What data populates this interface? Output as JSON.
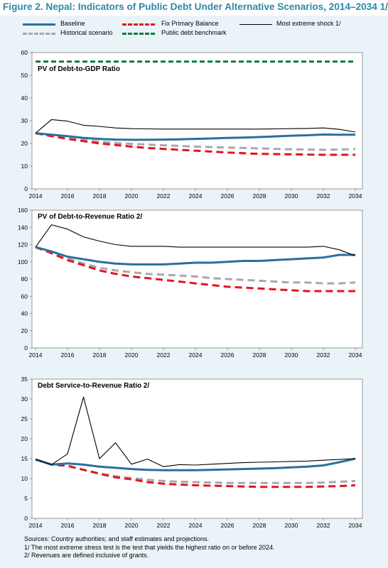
{
  "figure_title": "Figure 2. Nepal: Indicators of Public Debt Under Alternative Scenarios, 2014–2034 1/",
  "legend": {
    "baseline": "Baseline",
    "fix_primary_balance": "Fix Primary Balance",
    "most_extreme_shock": "Most extreme shock  1/",
    "historical": "Historical scenario",
    "benchmark": "Public debt benchmark"
  },
  "colors": {
    "title": "#2e88a8",
    "baseline": "#2a6f9e",
    "fix_primary_balance": "#e3141b",
    "most_extreme_shock": "#000000",
    "historical": "#a8a8a8",
    "benchmark": "#0e7a3c",
    "panel_background": "#eaf4f8"
  },
  "chart_data": [
    {
      "type": "line",
      "title": "PV of Debt-to-GDP Ratio",
      "ylim": [
        0,
        60
      ],
      "yticks": [
        0,
        10,
        20,
        30,
        40,
        50,
        60
      ],
      "xticks": [
        2014,
        2016,
        2018,
        2020,
        2022,
        2024,
        2026,
        2028,
        2030,
        2032,
        2034
      ],
      "x": [
        2014,
        2015,
        2016,
        2017,
        2018,
        2019,
        2020,
        2021,
        2022,
        2023,
        2024,
        2025,
        2026,
        2027,
        2028,
        2029,
        2030,
        2031,
        2032,
        2033,
        2034
      ],
      "series": [
        {
          "key": "benchmark",
          "values": [
            56,
            56,
            56,
            56,
            56,
            56,
            56,
            56,
            56,
            56,
            56,
            56,
            56,
            56,
            56,
            56,
            56,
            56,
            56,
            56,
            56
          ]
        },
        {
          "key": "historical",
          "values": [
            24.5,
            23.5,
            22.5,
            21.5,
            20.8,
            20.2,
            19.8,
            19.5,
            19.2,
            18.9,
            18.6,
            18.4,
            18.2,
            18.0,
            17.8,
            17.6,
            17.4,
            17.3,
            17.2,
            17.3,
            17.5
          ]
        },
        {
          "key": "fix_primary_balance",
          "values": [
            24.5,
            23.2,
            22.0,
            21.0,
            20.0,
            19.3,
            18.6,
            18.0,
            17.6,
            17.2,
            16.8,
            16.4,
            16.0,
            15.7,
            15.4,
            15.3,
            15.2,
            15.1,
            15.0,
            15.0,
            15.0
          ]
        },
        {
          "key": "baseline",
          "values": [
            24.5,
            23.8,
            23.2,
            22.4,
            22.0,
            21.7,
            21.6,
            21.6,
            21.7,
            21.8,
            22.0,
            22.2,
            22.4,
            22.6,
            22.8,
            23.1,
            23.4,
            23.6,
            23.9,
            23.8,
            23.8
          ]
        },
        {
          "key": "most_extreme_shock",
          "values": [
            24.5,
            30.5,
            29.8,
            28.0,
            27.5,
            26.8,
            26.5,
            26.4,
            26.3,
            26.3,
            26.3,
            26.3,
            26.3,
            26.3,
            26.3,
            26.4,
            26.5,
            26.6,
            26.8,
            26.2,
            25.0
          ]
        }
      ]
    },
    {
      "type": "line",
      "title": "PV of Debt-to-Revenue Ratio 2/",
      "ylim": [
        0,
        160
      ],
      "yticks": [
        0,
        20,
        40,
        60,
        80,
        100,
        120,
        140,
        160
      ],
      "xticks": [
        2014,
        2016,
        2018,
        2020,
        2022,
        2024,
        2026,
        2028,
        2030,
        2032,
        2034
      ],
      "x": [
        2014,
        2015,
        2016,
        2017,
        2018,
        2019,
        2020,
        2021,
        2022,
        2023,
        2024,
        2025,
        2026,
        2027,
        2028,
        2029,
        2030,
        2031,
        2032,
        2033,
        2034
      ],
      "series": [
        {
          "key": "historical",
          "values": [
            117,
            111,
            104,
            98,
            93,
            90,
            88,
            86,
            85,
            84,
            83,
            81,
            80,
            79,
            78,
            77,
            76,
            76,
            75,
            75,
            76
          ]
        },
        {
          "key": "fix_primary_balance",
          "values": [
            117,
            110,
            102,
            96,
            90,
            86,
            83,
            81,
            79,
            77,
            75,
            73,
            71,
            70,
            69,
            68,
            67,
            66,
            66,
            66,
            66
          ]
        },
        {
          "key": "baseline",
          "values": [
            117,
            112,
            106,
            103,
            100,
            98,
            97,
            97,
            97,
            98,
            99,
            99,
            100,
            101,
            101,
            102,
            103,
            104,
            105,
            108,
            108
          ]
        },
        {
          "key": "most_extreme_shock",
          "values": [
            117,
            143,
            138,
            129,
            124,
            120,
            118,
            118,
            118,
            117,
            117,
            117,
            117,
            117,
            117,
            117,
            117,
            117,
            118,
            114,
            107
          ]
        }
      ]
    },
    {
      "type": "line",
      "title": "Debt Service-to-Revenue Ratio 2/",
      "ylim": [
        0,
        35
      ],
      "yticks": [
        0,
        5,
        10,
        15,
        20,
        25,
        30,
        35
      ],
      "xticks": [
        2014,
        2016,
        2018,
        2020,
        2022,
        2024,
        2026,
        2028,
        2030,
        2032,
        2034
      ],
      "x": [
        2014,
        2015,
        2016,
        2017,
        2018,
        2019,
        2020,
        2021,
        2022,
        2023,
        2024,
        2025,
        2026,
        2027,
        2028,
        2029,
        2030,
        2031,
        2032,
        2033,
        2034
      ],
      "series": [
        {
          "key": "historical",
          "values": [
            14.8,
            13.5,
            13.2,
            12.2,
            11.3,
            10.6,
            10.1,
            9.7,
            9.4,
            9.2,
            9.1,
            9.0,
            8.9,
            8.9,
            8.9,
            8.9,
            8.9,
            8.9,
            9.0,
            9.2,
            9.4
          ]
        },
        {
          "key": "fix_primary_balance",
          "values": [
            14.8,
            13.5,
            13.2,
            12.2,
            11.2,
            10.3,
            9.8,
            9.1,
            8.7,
            8.5,
            8.3,
            8.2,
            8.1,
            8.0,
            7.9,
            7.9,
            7.9,
            7.9,
            8.0,
            8.1,
            8.3
          ]
        },
        {
          "key": "baseline",
          "values": [
            14.8,
            13.5,
            13.8,
            13.5,
            13.0,
            12.7,
            12.4,
            12.2,
            12.1,
            12.1,
            12.1,
            12.2,
            12.3,
            12.4,
            12.5,
            12.6,
            12.8,
            13.0,
            13.3,
            14.1,
            15.0
          ]
        },
        {
          "key": "most_extreme_shock",
          "values": [
            14.8,
            13.5,
            16.2,
            30.5,
            15.0,
            19.0,
            13.6,
            14.9,
            13.0,
            13.5,
            13.4,
            13.6,
            13.8,
            14.0,
            14.1,
            14.2,
            14.3,
            14.4,
            14.6,
            14.8,
            15.0
          ]
        }
      ]
    }
  ],
  "sources": [
    "Sources: Country authorities; and staff estimates and projections.",
    "1/ The most extreme stress test is the test that yields the highest ratio on or before 2024.",
    "2/ Revenues are defined inclusive of grants."
  ]
}
